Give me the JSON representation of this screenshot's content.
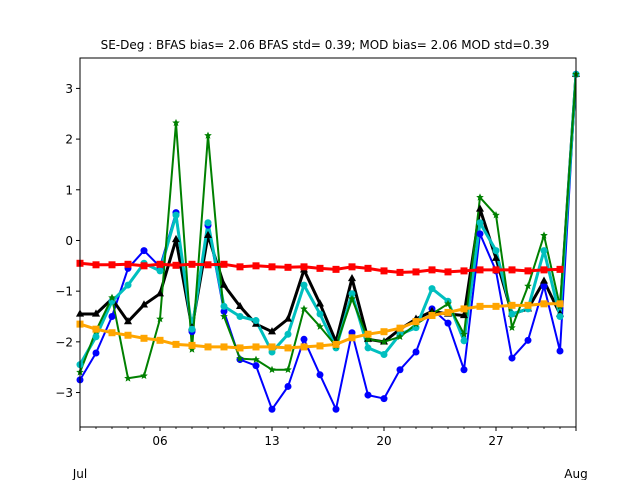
{
  "chart_data": {
    "type": "line",
    "title": "SE-Deg   : BFAS bias= 2.06 BFAS std= 0.39; MOD bias= 2.06 MOD std=0.39",
    "xlabel": "",
    "ylabel": "",
    "xlim": [
      1,
      32
    ],
    "ylim": [
      -3.68,
      3.6
    ],
    "x_major_ticks": [
      {
        "x": 6,
        "label": "06"
      },
      {
        "x": 13,
        "label": "13"
      },
      {
        "x": 20,
        "label": "20"
      },
      {
        "x": 27,
        "label": "27"
      }
    ],
    "x_month_labels": [
      {
        "x": 1,
        "label": "Jul"
      },
      {
        "x": 32,
        "label": "Aug"
      }
    ],
    "y_ticks": [
      3,
      2,
      1,
      0,
      -1,
      -2,
      -3
    ],
    "grid": false,
    "legend": "none",
    "x": [
      1,
      2,
      3,
      4,
      5,
      6,
      7,
      8,
      9,
      10,
      11,
      12,
      13,
      14,
      15,
      16,
      17,
      18,
      19,
      20,
      21,
      22,
      23,
      24,
      25,
      26,
      27,
      28,
      29,
      30,
      31,
      32
    ],
    "series": [
      {
        "color": "#0000ff",
        "marker": "circle",
        "line_width": 2,
        "marker_size": 3.5,
        "values": [
          -2.75,
          -2.22,
          -1.5,
          -0.55,
          -0.2,
          -0.52,
          0.55,
          -1.8,
          0.3,
          -1.4,
          -2.35,
          -2.47,
          -3.33,
          -2.88,
          -1.95,
          -2.65,
          -3.33,
          -1.82,
          -3.05,
          -3.12,
          -2.55,
          -2.2,
          -1.35,
          -1.63,
          -2.55,
          0.13,
          -0.6,
          -2.32,
          -1.97,
          -0.9,
          -2.18,
          3.28
        ]
      },
      {
        "color": "#000000",
        "marker": "triangle",
        "line_width": 3,
        "marker_size": 3.5,
        "values": [
          -1.45,
          -1.45,
          -1.15,
          -1.6,
          -1.27,
          -1.05,
          0.02,
          -1.72,
          0.1,
          -0.88,
          -1.3,
          -1.65,
          -1.8,
          -1.55,
          -0.58,
          -1.25,
          -2.0,
          -0.75,
          -1.95,
          -2.0,
          -1.75,
          -1.55,
          -1.4,
          -1.45,
          -1.48,
          0.62,
          -0.35,
          -1.45,
          -1.35,
          -0.8,
          -1.45,
          3.28
        ]
      },
      {
        "color": "#00bfbf",
        "marker": "circle",
        "line_width": 3,
        "marker_size": 3.5,
        "values": [
          -2.45,
          -1.9,
          -1.2,
          -0.88,
          -0.45,
          -0.6,
          0.5,
          -1.75,
          0.35,
          -1.3,
          -1.5,
          -1.58,
          -2.2,
          -1.85,
          -0.88,
          -1.45,
          -2.12,
          -1.05,
          -2.12,
          -2.25,
          -1.85,
          -1.72,
          -0.95,
          -1.2,
          -1.98,
          0.35,
          -0.2,
          -1.45,
          -1.35,
          -0.2,
          -1.5,
          3.28
        ]
      },
      {
        "color": "#008000",
        "marker": "star",
        "line_width": 2,
        "marker_size": 4,
        "values": [
          -2.6,
          -1.78,
          -1.13,
          -2.72,
          -2.67,
          -1.55,
          2.32,
          -2.15,
          2.07,
          -1.5,
          -2.33,
          -2.35,
          -2.55,
          -2.55,
          -1.35,
          -1.7,
          -2.08,
          -1.15,
          -1.95,
          -2.0,
          -1.9,
          -1.65,
          -1.45,
          -1.25,
          -1.85,
          0.85,
          0.5,
          -1.72,
          -0.9,
          0.1,
          -1.3,
          3.28
        ]
      },
      {
        "color": "#ff0000",
        "marker": "square",
        "line_width": 3,
        "marker_size": 3.5,
        "values": [
          -0.45,
          -0.48,
          -0.48,
          -0.47,
          -0.5,
          -0.47,
          -0.49,
          -0.47,
          -0.48,
          -0.47,
          -0.52,
          -0.5,
          -0.52,
          -0.53,
          -0.52,
          -0.55,
          -0.57,
          -0.52,
          -0.55,
          -0.6,
          -0.63,
          -0.62,
          -0.58,
          -0.62,
          -0.6,
          -0.58,
          -0.58,
          -0.58,
          -0.6,
          -0.58,
          -0.57,
          null
        ]
      },
      {
        "color": "#ffa500",
        "marker": "square",
        "line_width": 3,
        "marker_size": 3.5,
        "values": [
          -1.65,
          -1.75,
          -1.82,
          -1.87,
          -1.93,
          -1.97,
          -2.05,
          -2.07,
          -2.1,
          -2.1,
          -2.12,
          -2.1,
          -2.1,
          -2.12,
          -2.1,
          -2.08,
          -2.05,
          -1.92,
          -1.85,
          -1.8,
          -1.73,
          -1.6,
          -1.48,
          -1.42,
          -1.35,
          -1.3,
          -1.3,
          -1.28,
          -1.28,
          -1.25,
          -1.25,
          null
        ]
      }
    ]
  }
}
